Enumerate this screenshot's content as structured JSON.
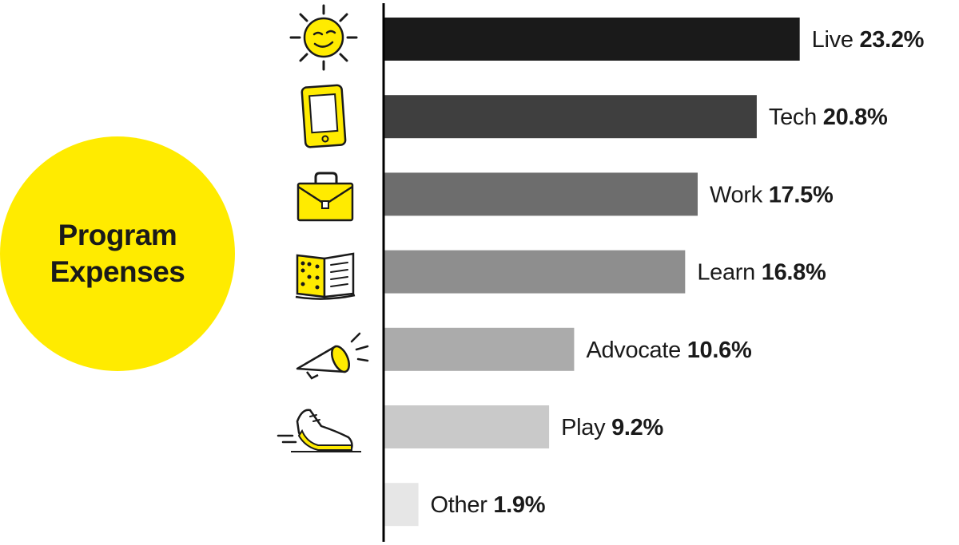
{
  "badge": {
    "title": "Program Expenses"
  },
  "colors": {
    "badge": "#FFEB00",
    "icon_yellow": "#FFEB00",
    "axis": "#000000",
    "text": "#1a1a1a"
  },
  "chart_data": {
    "type": "bar",
    "orientation": "horizontal",
    "title": "Program Expenses",
    "unit": "%",
    "categories": [
      "Live",
      "Tech",
      "Work",
      "Learn",
      "Advocate",
      "Play",
      "Other"
    ],
    "values": [
      23.2,
      20.8,
      17.5,
      16.8,
      10.6,
      9.2,
      1.9
    ],
    "labels": [
      "23.2%",
      "20.8%",
      "17.5%",
      "16.8%",
      "10.6%",
      "9.2%",
      "1.9%"
    ],
    "bar_colors": [
      "#1a1a1a",
      "#3f3f3f",
      "#6d6d6d",
      "#8e8e8e",
      "#ababab",
      "#c9c9c9",
      "#e6e6e6"
    ],
    "icons": [
      "sun-icon",
      "smartphone-icon",
      "briefcase-icon",
      "braille-book-icon",
      "megaphone-icon",
      "sneaker-icon",
      ""
    ],
    "grid": false,
    "legend": "none"
  }
}
